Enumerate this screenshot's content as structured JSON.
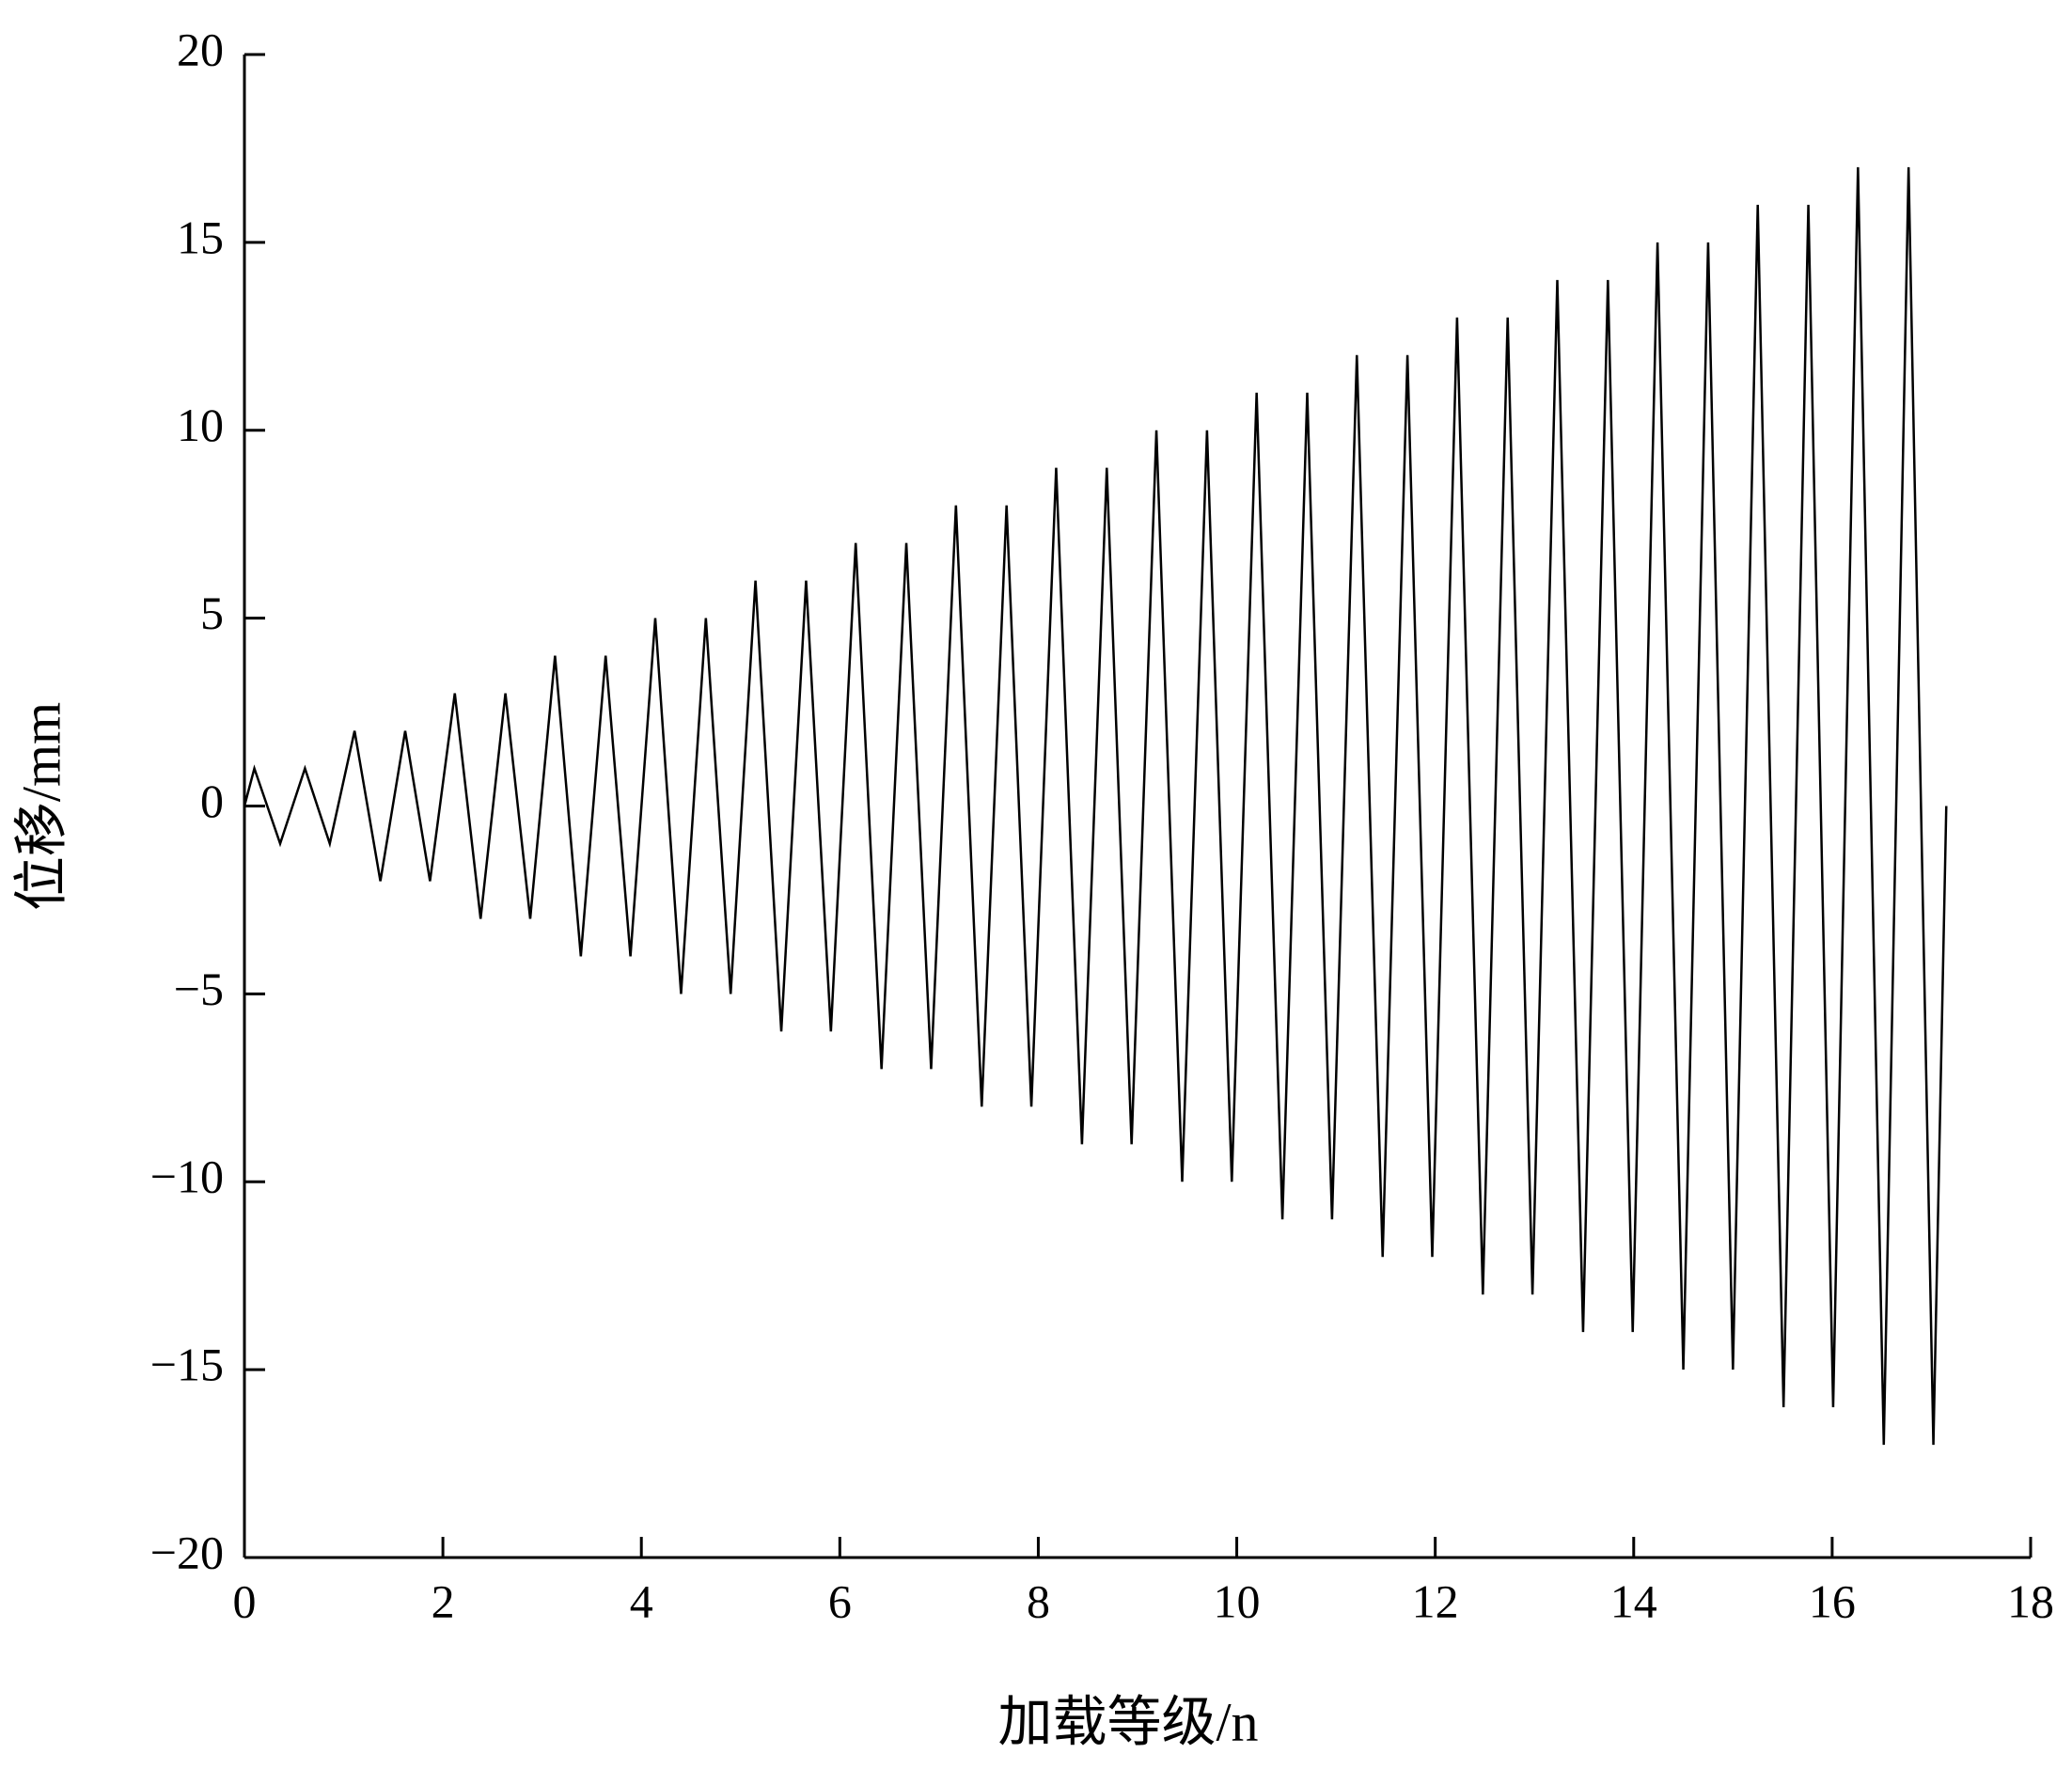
{
  "chart_data": {
    "type": "line",
    "xlabel": "加载等级/n",
    "ylabel": "位移/mm",
    "xlim": [
      0,
      18
    ],
    "xticks": [
      0,
      2,
      4,
      6,
      8,
      10,
      12,
      14,
      16,
      18
    ],
    "ylim": [
      -20,
      20
    ],
    "yticks": [
      {
        "value": -20,
        "label": "−20"
      },
      {
        "value": -15,
        "label": "−15"
      },
      {
        "value": -10,
        "label": "−10"
      },
      {
        "value": -5,
        "label": "−5"
      },
      0,
      5,
      10,
      15,
      20
    ],
    "grid": false,
    "series": [
      {
        "color": "#000000",
        "x": [
          0,
          0.1,
          0.36,
          0.61,
          0.86,
          1.11,
          1.37,
          1.62,
          1.87,
          2.12,
          2.38,
          2.63,
          2.88,
          3.13,
          3.39,
          3.64,
          3.89,
          4.14,
          4.4,
          4.65,
          4.9,
          5.15,
          5.41,
          5.66,
          5.91,
          6.16,
          6.42,
          6.67,
          6.92,
          7.17,
          7.43,
          7.68,
          7.93,
          8.18,
          8.44,
          8.69,
          8.94,
          9.19,
          9.45,
          9.7,
          9.95,
          10.2,
          10.46,
          10.71,
          10.96,
          11.21,
          11.47,
          11.72,
          11.97,
          12.22,
          12.48,
          12.73,
          12.98,
          13.23,
          13.49,
          13.74,
          13.99,
          14.24,
          14.5,
          14.75,
          15.0,
          15.25,
          15.51,
          15.76,
          16.01,
          16.26,
          16.52,
          16.77,
          17.02,
          17.15
        ],
        "values": [
          0,
          1,
          -1,
          1,
          -1,
          2,
          -2,
          2,
          -2,
          3,
          -3,
          3,
          -3,
          4,
          -4,
          4,
          -4,
          5,
          -5,
          5,
          -5,
          6,
          -6,
          6,
          -6,
          7,
          -7,
          7,
          -7,
          8,
          -8,
          8,
          -8,
          9,
          -9,
          9,
          -9,
          10,
          -10,
          10,
          -10,
          11,
          -11,
          11,
          -11,
          12,
          -12,
          12,
          -12,
          13,
          -13,
          13,
          -13,
          14,
          -14,
          14,
          -14,
          15,
          -15,
          15,
          -15,
          16,
          -16,
          16,
          -16,
          17,
          -17,
          17,
          -17,
          0
        ]
      }
    ]
  }
}
